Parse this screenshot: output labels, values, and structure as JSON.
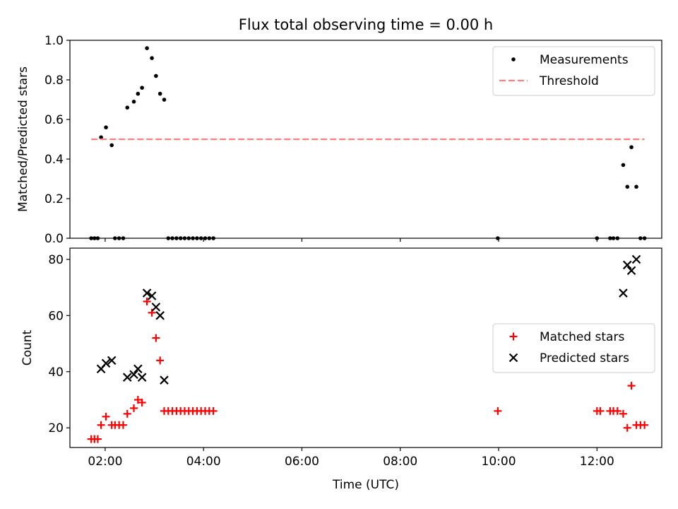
{
  "chart_data": {
    "type": "scatter",
    "title": "Flux total observing time = 0.00 h",
    "xlabel": "Time (UTC)",
    "xlim": [
      "01:17",
      "13:19"
    ],
    "xticks": [
      "02:00",
      "04:00",
      "06:00",
      "08:00",
      "10:00",
      "12:00"
    ],
    "panels": [
      {
        "ylabel": "Matched/Predicted stars",
        "ylim": [
          0,
          1.0
        ],
        "yticks": [
          "0.0",
          "0.2",
          "0.4",
          "0.6",
          "0.8",
          "1.0"
        ],
        "legend_position": "top-right",
        "series": [
          {
            "name": "Measurements",
            "kind": "scatter",
            "marker": "dot",
            "color": "#000000",
            "points": [
              [
                "01:43",
                0.0
              ],
              [
                "01:47",
                0.0
              ],
              [
                "01:51",
                0.0
              ],
              [
                "01:55",
                0.51
              ],
              [
                "02:01",
                0.56
              ],
              [
                "02:08",
                0.47
              ],
              [
                "02:12",
                0.0
              ],
              [
                "02:17",
                0.0
              ],
              [
                "02:22",
                0.0
              ],
              [
                "02:27",
                0.66
              ],
              [
                "02:35",
                0.69
              ],
              [
                "02:40",
                0.73
              ],
              [
                "02:45",
                0.76
              ],
              [
                "02:51",
                0.96
              ],
              [
                "02:57",
                0.91
              ],
              [
                "03:02",
                0.82
              ],
              [
                "03:07",
                0.73
              ],
              [
                "03:12",
                0.7
              ],
              [
                "03:17",
                0.0
              ],
              [
                "03:22",
                0.0
              ],
              [
                "03:27",
                0.0
              ],
              [
                "03:32",
                0.0
              ],
              [
                "03:37",
                0.0
              ],
              [
                "03:42",
                0.0
              ],
              [
                "03:47",
                0.0
              ],
              [
                "03:52",
                0.0
              ],
              [
                "03:57",
                0.0
              ],
              [
                "04:02",
                0.0
              ],
              [
                "04:07",
                0.0
              ],
              [
                "04:12",
                0.0
              ],
              [
                "09:59",
                0.0
              ],
              [
                "12:00",
                0.0
              ],
              [
                "12:16",
                0.0
              ],
              [
                "12:20",
                0.0
              ],
              [
                "12:25",
                0.0
              ],
              [
                "12:32",
                0.37
              ],
              [
                "12:37",
                0.26
              ],
              [
                "12:42",
                0.46
              ],
              [
                "12:48",
                0.26
              ],
              [
                "12:53",
                0.0
              ],
              [
                "12:58",
                0.0
              ]
            ]
          },
          {
            "name": "Threshold",
            "kind": "dashed-line",
            "color": "#ff7f7f",
            "points": [
              [
                "01:43",
                0.5
              ],
              [
                "12:58",
                0.5
              ]
            ]
          }
        ]
      },
      {
        "ylabel": "Count",
        "ylim": [
          13,
          84
        ],
        "yticks": [
          "20",
          "40",
          "60",
          "80"
        ],
        "legend_position": "center-right",
        "series": [
          {
            "name": "Matched stars",
            "kind": "scatter",
            "marker": "plus",
            "color": "#ff0000",
            "points": [
              [
                "01:43",
                16
              ],
              [
                "01:47",
                16
              ],
              [
                "01:51",
                16
              ],
              [
                "01:55",
                21
              ],
              [
                "02:01",
                24
              ],
              [
                "02:08",
                21
              ],
              [
                "02:12",
                21
              ],
              [
                "02:17",
                21
              ],
              [
                "02:22",
                21
              ],
              [
                "02:27",
                25
              ],
              [
                "02:35",
                27
              ],
              [
                "02:40",
                30
              ],
              [
                "02:45",
                29
              ],
              [
                "02:51",
                65
              ],
              [
                "02:57",
                61
              ],
              [
                "03:02",
                52
              ],
              [
                "03:07",
                44
              ],
              [
                "03:12",
                26
              ],
              [
                "03:17",
                26
              ],
              [
                "03:22",
                26
              ],
              [
                "03:27",
                26
              ],
              [
                "03:32",
                26
              ],
              [
                "03:37",
                26
              ],
              [
                "03:42",
                26
              ],
              [
                "03:47",
                26
              ],
              [
                "03:52",
                26
              ],
              [
                "03:57",
                26
              ],
              [
                "04:02",
                26
              ],
              [
                "04:07",
                26
              ],
              [
                "04:12",
                26
              ],
              [
                "09:59",
                26
              ],
              [
                "12:00",
                26
              ],
              [
                "12:04",
                26
              ],
              [
                "12:16",
                26
              ],
              [
                "12:20",
                26
              ],
              [
                "12:25",
                26
              ],
              [
                "12:32",
                25
              ],
              [
                "12:37",
                20
              ],
              [
                "12:42",
                35
              ],
              [
                "12:48",
                21
              ],
              [
                "12:53",
                21
              ],
              [
                "12:58",
                21
              ]
            ]
          },
          {
            "name": "Predicted stars",
            "kind": "scatter",
            "marker": "x",
            "color": "#000000",
            "points": [
              [
                "01:55",
                41
              ],
              [
                "02:01",
                43
              ],
              [
                "02:08",
                44
              ],
              [
                "02:27",
                38
              ],
              [
                "02:35",
                39
              ],
              [
                "02:40",
                41
              ],
              [
                "02:45",
                38
              ],
              [
                "02:51",
                68
              ],
              [
                "02:57",
                67
              ],
              [
                "03:02",
                63
              ],
              [
                "03:07",
                60
              ],
              [
                "03:12",
                37
              ],
              [
                "12:32",
                68
              ],
              [
                "12:37",
                78
              ],
              [
                "12:42",
                76
              ],
              [
                "12:48",
                80
              ]
            ]
          }
        ]
      }
    ]
  }
}
